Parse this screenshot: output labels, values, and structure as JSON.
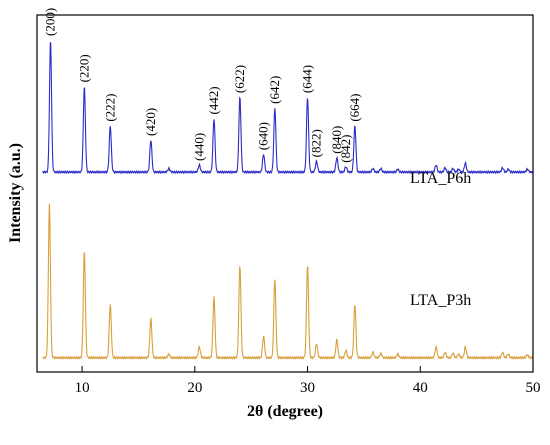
{
  "chart_data": {
    "type": "line",
    "xlabel": "2θ (degree)",
    "ylabel": "Intensity (a.u.)",
    "xlim": [
      6,
      50
    ],
    "x_ticks": [
      10,
      20,
      30,
      40,
      50
    ],
    "y_ticks_labeled": false,
    "grid": false,
    "series": [
      {
        "name": "LTA_P6h",
        "color": "#2b2bc8",
        "baseline": 0.56,
        "peaks": [
          {
            "x": 7.2,
            "h": 0.37,
            "label": "(200)"
          },
          {
            "x": 10.2,
            "h": 0.24,
            "label": "(220)"
          },
          {
            "x": 12.5,
            "h": 0.13,
            "label": "(222)"
          },
          {
            "x": 16.1,
            "h": 0.09,
            "label": "(420)"
          },
          {
            "x": 17.7,
            "h": 0.01,
            "label": ""
          },
          {
            "x": 20.4,
            "h": 0.02,
            "label": "(440)"
          },
          {
            "x": 21.7,
            "h": 0.15,
            "label": "(442)"
          },
          {
            "x": 24.0,
            "h": 0.21,
            "label": "(622)"
          },
          {
            "x": 26.1,
            "h": 0.05,
            "label": "(640)"
          },
          {
            "x": 27.1,
            "h": 0.18,
            "label": "(642)"
          },
          {
            "x": 30.0,
            "h": 0.21,
            "label": "(644)"
          },
          {
            "x": 30.8,
            "h": 0.03,
            "label": "(822)"
          },
          {
            "x": 32.6,
            "h": 0.04,
            "label": "(840)"
          },
          {
            "x": 33.4,
            "h": 0.015,
            "label": "(842)"
          },
          {
            "x": 34.2,
            "h": 0.13,
            "label": "(664)"
          },
          {
            "x": 35.8,
            "h": 0.01,
            "label": ""
          },
          {
            "x": 36.5,
            "h": 0.01,
            "label": ""
          },
          {
            "x": 38.0,
            "h": 0.008,
            "label": ""
          },
          {
            "x": 41.4,
            "h": 0.02,
            "label": ""
          },
          {
            "x": 42.2,
            "h": 0.012,
            "label": ""
          },
          {
            "x": 42.9,
            "h": 0.01,
            "label": ""
          },
          {
            "x": 43.4,
            "h": 0.008,
            "label": ""
          },
          {
            "x": 44.0,
            "h": 0.025,
            "label": ""
          },
          {
            "x": 47.3,
            "h": 0.012,
            "label": ""
          },
          {
            "x": 47.8,
            "h": 0.008,
            "label": ""
          },
          {
            "x": 49.5,
            "h": 0.008,
            "label": ""
          }
        ]
      },
      {
        "name": "LTA_P3h",
        "color": "#d9a03c",
        "baseline": 0.04,
        "peaks": [
          {
            "x": 7.1,
            "h": 0.43
          },
          {
            "x": 10.2,
            "h": 0.3
          },
          {
            "x": 12.5,
            "h": 0.15
          },
          {
            "x": 16.1,
            "h": 0.11
          },
          {
            "x": 17.7,
            "h": 0.01
          },
          {
            "x": 20.4,
            "h": 0.03
          },
          {
            "x": 21.7,
            "h": 0.17
          },
          {
            "x": 24.0,
            "h": 0.26
          },
          {
            "x": 26.1,
            "h": 0.06
          },
          {
            "x": 27.1,
            "h": 0.22
          },
          {
            "x": 30.0,
            "h": 0.26
          },
          {
            "x": 30.8,
            "h": 0.04
          },
          {
            "x": 32.6,
            "h": 0.05
          },
          {
            "x": 33.4,
            "h": 0.02
          },
          {
            "x": 34.2,
            "h": 0.15
          },
          {
            "x": 35.8,
            "h": 0.015
          },
          {
            "x": 36.5,
            "h": 0.012
          },
          {
            "x": 38.0,
            "h": 0.01
          },
          {
            "x": 41.4,
            "h": 0.03
          },
          {
            "x": 42.2,
            "h": 0.015
          },
          {
            "x": 42.9,
            "h": 0.012
          },
          {
            "x": 43.4,
            "h": 0.01
          },
          {
            "x": 44.0,
            "h": 0.03
          },
          {
            "x": 47.3,
            "h": 0.015
          },
          {
            "x": 47.8,
            "h": 0.01
          },
          {
            "x": 49.5,
            "h": 0.008
          }
        ]
      }
    ]
  }
}
